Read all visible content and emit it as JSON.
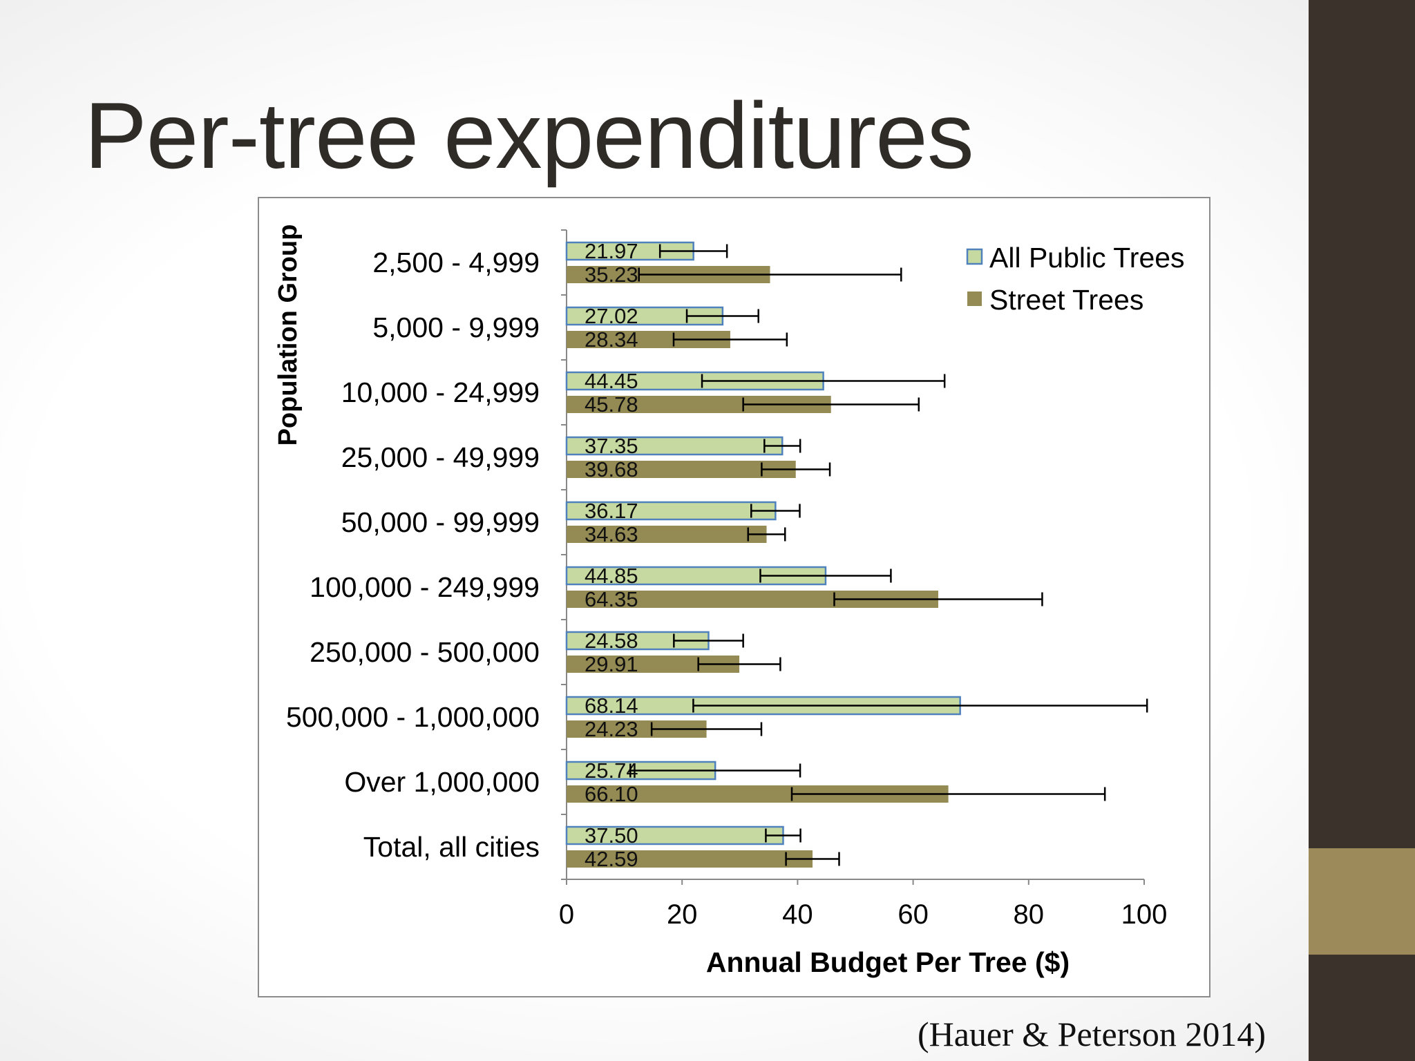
{
  "slide": {
    "title": "Per-tree expenditures",
    "citation": "(Hauer & Peterson 2014)"
  },
  "colors": {
    "all_public": "#c6d9a0",
    "all_public_border": "#4f81bd",
    "street": "#948a54",
    "sidebar": "#3a322b",
    "accent": "#9c8a5a"
  },
  "chart_data": {
    "type": "bar",
    "orientation": "horizontal",
    "xlabel": "Annual Budget Per Tree ($)",
    "ylabel": "Population Group",
    "xlim": [
      0,
      100
    ],
    "xticks": [
      "0",
      "20",
      "40",
      "60",
      "80",
      "100"
    ],
    "legend_position": "top-right",
    "categories": [
      "2,500 - 4,999",
      "5,000 - 9,999",
      "10,000 - 24,999",
      "25,000 - 49,999",
      "50,000 - 99,999",
      "100,000 - 249,999",
      "250,000 - 500,000",
      "500,000 - 1,000,000",
      "Over 1,000,000",
      "Total, all cities"
    ],
    "series": [
      {
        "name": "All Public Trees",
        "values": [
          21.97,
          27.02,
          44.45,
          37.35,
          36.17,
          44.85,
          24.58,
          68.14,
          25.74,
          37.5
        ],
        "labels": [
          "21.97",
          "27.02",
          "44.45",
          "37.35",
          "36.17",
          "44.85",
          "24.58",
          "68.14",
          "25.74",
          "37.50"
        ],
        "error": [
          5.8,
          6.2,
          21.0,
          3.1,
          4.2,
          11.3,
          6.0,
          46.2,
          14.7,
          3.0
        ]
      },
      {
        "name": "Street Trees",
        "values": [
          35.23,
          28.34,
          45.78,
          39.68,
          34.63,
          64.35,
          29.91,
          24.23,
          66.1,
          42.59
        ],
        "labels": [
          "35.23",
          "28.34",
          "45.78",
          "39.68",
          "34.63",
          "64.35",
          "29.91",
          "24.23",
          "66.10",
          "42.59"
        ],
        "error": [
          22.7,
          9.8,
          15.2,
          5.9,
          3.2,
          18.0,
          7.1,
          9.5,
          27.1,
          4.6
        ]
      }
    ]
  }
}
